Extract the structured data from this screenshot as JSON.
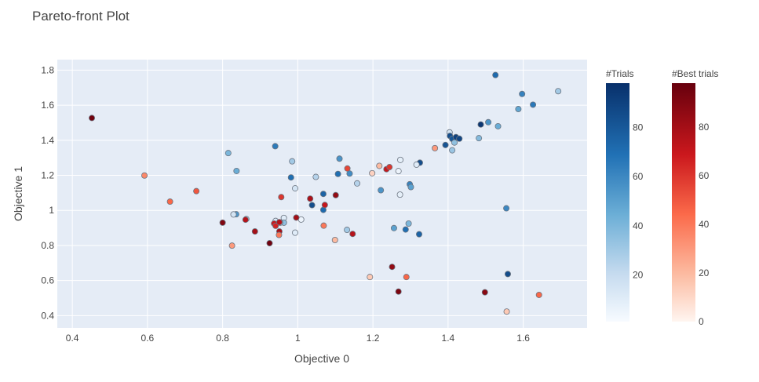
{
  "chart_data": {
    "type": "scatter",
    "title": "Pareto-front Plot",
    "xlabel": "Objective 0",
    "ylabel": "Objective 1",
    "xlim": [
      0.36,
      1.77
    ],
    "ylim": [
      0.33,
      1.86
    ],
    "xticks": [
      0.4,
      0.6,
      0.8,
      1,
      1.2,
      1.4,
      1.6
    ],
    "xtick_labels": [
      "0.4",
      "0.6",
      "0.8",
      "1",
      "1.2",
      "1.4",
      "1.6"
    ],
    "yticks": [
      0.4,
      0.6,
      0.8,
      1,
      1.2,
      1.4,
      1.6,
      1.8
    ],
    "ytick_labels": [
      "0.4",
      "0.6",
      "0.8",
      "1",
      "1.2",
      "1.4",
      "1.6",
      "1.8"
    ],
    "grid": true,
    "colors": {
      "plot_bg": "#e5ecf6",
      "grid": "#ffffff",
      "marker_stroke": "#6b7480"
    },
    "colorbars": [
      {
        "title": "#Trials",
        "scale": "Blues",
        "range": [
          1,
          98
        ],
        "ticks": [
          20,
          40,
          60,
          80
        ],
        "tick_labels": [
          "20",
          "40",
          "60",
          "80"
        ]
      },
      {
        "title": "#Best trials",
        "scale": "Reds",
        "range": [
          0,
          98
        ],
        "ticks": [
          0,
          20,
          40,
          60,
          80
        ],
        "tick_labels": [
          "0",
          "20",
          "40",
          "60",
          "80"
        ]
      }
    ],
    "series": [
      {
        "colorscale": "Blues",
        "points": [
          {
            "x": 1.693,
            "y": 1.68,
            "c": 30
          },
          {
            "x": 1.526,
            "y": 1.772,
            "c": 72
          },
          {
            "x": 1.597,
            "y": 1.664,
            "c": 62
          },
          {
            "x": 1.626,
            "y": 1.603,
            "c": 66
          },
          {
            "x": 1.587,
            "y": 1.578,
            "c": 48
          },
          {
            "x": 1.507,
            "y": 1.503,
            "c": 55
          },
          {
            "x": 1.487,
            "y": 1.49,
            "c": 95
          },
          {
            "x": 1.533,
            "y": 1.48,
            "c": 45
          },
          {
            "x": 1.482,
            "y": 1.412,
            "c": 38
          },
          {
            "x": 1.404,
            "y": 1.445,
            "c": 15
          },
          {
            "x": 1.405,
            "y": 1.425,
            "c": 85
          },
          {
            "x": 1.411,
            "y": 1.408,
            "c": 80
          },
          {
            "x": 1.421,
            "y": 1.418,
            "c": 90
          },
          {
            "x": 1.43,
            "y": 1.409,
            "c": 88
          },
          {
            "x": 1.417,
            "y": 1.387,
            "c": 35
          },
          {
            "x": 1.411,
            "y": 1.343,
            "c": 32
          },
          {
            "x": 1.393,
            "y": 1.373,
            "c": 82
          },
          {
            "x": 1.325,
            "y": 1.272,
            "c": 85
          },
          {
            "x": 1.316,
            "y": 1.261,
            "c": 10
          },
          {
            "x": 1.273,
            "y": 1.288,
            "c": 8
          },
          {
            "x": 1.268,
            "y": 1.224,
            "c": 5
          },
          {
            "x": 1.272,
            "y": 1.09,
            "c": 8
          },
          {
            "x": 1.298,
            "y": 1.149,
            "c": 62
          },
          {
            "x": 1.301,
            "y": 1.133,
            "c": 50
          },
          {
            "x": 1.221,
            "y": 1.115,
            "c": 55
          },
          {
            "x": 1.138,
            "y": 1.21,
            "c": 58
          },
          {
            "x": 1.107,
            "y": 1.208,
            "c": 70
          },
          {
            "x": 1.111,
            "y": 1.295,
            "c": 55
          },
          {
            "x": 1.158,
            "y": 1.154,
            "c": 25
          },
          {
            "x": 1.068,
            "y": 1.094,
            "c": 75
          },
          {
            "x": 1.068,
            "y": 1.003,
            "c": 72
          },
          {
            "x": 1.048,
            "y": 1.191,
            "c": 25
          },
          {
            "x": 0.94,
            "y": 1.366,
            "c": 65
          },
          {
            "x": 0.982,
            "y": 1.188,
            "c": 70
          },
          {
            "x": 0.985,
            "y": 1.28,
            "c": 30
          },
          {
            "x": 0.993,
            "y": 1.126,
            "c": 15
          },
          {
            "x": 0.815,
            "y": 1.327,
            "c": 40
          },
          {
            "x": 0.837,
            "y": 1.225,
            "c": 45
          },
          {
            "x": 0.836,
            "y": 0.978,
            "c": 55
          },
          {
            "x": 0.829,
            "y": 0.977,
            "c": 15
          },
          {
            "x": 0.863,
            "y": 0.951,
            "c": 20
          },
          {
            "x": 0.963,
            "y": 0.957,
            "c": 10
          },
          {
            "x": 0.963,
            "y": 0.93,
            "c": 35
          },
          {
            "x": 0.941,
            "y": 0.94,
            "c": 12
          },
          {
            "x": 0.953,
            "y": 0.93,
            "c": 15
          },
          {
            "x": 0.993,
            "y": 0.873,
            "c": 10
          },
          {
            "x": 1.009,
            "y": 0.948,
            "c": 5
          },
          {
            "x": 1.038,
            "y": 1.03,
            "c": 85
          },
          {
            "x": 1.131,
            "y": 0.889,
            "c": 30
          },
          {
            "x": 1.256,
            "y": 0.899,
            "c": 50
          },
          {
            "x": 1.287,
            "y": 0.891,
            "c": 70
          },
          {
            "x": 1.295,
            "y": 0.925,
            "c": 40
          },
          {
            "x": 1.323,
            "y": 0.864,
            "c": 75
          },
          {
            "x": 1.555,
            "y": 1.012,
            "c": 60
          },
          {
            "x": 1.559,
            "y": 0.637,
            "c": 85
          }
        ]
      },
      {
        "colorscale": "Reds",
        "points": [
          {
            "x": 0.452,
            "y": 1.527,
            "c": 95
          },
          {
            "x": 0.592,
            "y": 1.199,
            "c": 35
          },
          {
            "x": 0.66,
            "y": 1.05,
            "c": 45
          },
          {
            "x": 0.73,
            "y": 1.11,
            "c": 50
          },
          {
            "x": 0.8,
            "y": 0.93,
            "c": 90
          },
          {
            "x": 0.825,
            "y": 0.799,
            "c": 30
          },
          {
            "x": 0.861,
            "y": 0.947,
            "c": 75
          },
          {
            "x": 0.886,
            "y": 0.88,
            "c": 80
          },
          {
            "x": 0.925,
            "y": 0.813,
            "c": 95
          },
          {
            "x": 0.937,
            "y": 0.925,
            "c": 70
          },
          {
            "x": 0.941,
            "y": 0.912,
            "c": 65
          },
          {
            "x": 0.951,
            "y": 0.88,
            "c": 80
          },
          {
            "x": 0.95,
            "y": 0.86,
            "c": 40
          },
          {
            "x": 0.951,
            "y": 0.933,
            "c": 75
          },
          {
            "x": 0.956,
            "y": 1.076,
            "c": 60
          },
          {
            "x": 0.996,
            "y": 0.959,
            "c": 80
          },
          {
            "x": 1.033,
            "y": 1.067,
            "c": 78
          },
          {
            "x": 1.072,
            "y": 1.031,
            "c": 70
          },
          {
            "x": 1.069,
            "y": 0.913,
            "c": 40
          },
          {
            "x": 1.101,
            "y": 1.087,
            "c": 85
          },
          {
            "x": 1.099,
            "y": 0.831,
            "c": 20
          },
          {
            "x": 1.146,
            "y": 0.866,
            "c": 75
          },
          {
            "x": 1.132,
            "y": 1.239,
            "c": 55
          },
          {
            "x": 1.198,
            "y": 1.212,
            "c": 12
          },
          {
            "x": 1.217,
            "y": 1.254,
            "c": 20
          },
          {
            "x": 1.236,
            "y": 1.235,
            "c": 70
          },
          {
            "x": 1.244,
            "y": 1.247,
            "c": 60
          },
          {
            "x": 1.365,
            "y": 1.355,
            "c": 30
          },
          {
            "x": 1.192,
            "y": 0.62,
            "c": 15
          },
          {
            "x": 1.251,
            "y": 0.678,
            "c": 85
          },
          {
            "x": 1.268,
            "y": 0.537,
            "c": 92
          },
          {
            "x": 1.289,
            "y": 0.62,
            "c": 45
          },
          {
            "x": 1.498,
            "y": 0.533,
            "c": 88
          },
          {
            "x": 1.556,
            "y": 0.423,
            "c": 15
          },
          {
            "x": 1.642,
            "y": 0.518,
            "c": 45
          }
        ]
      }
    ]
  }
}
